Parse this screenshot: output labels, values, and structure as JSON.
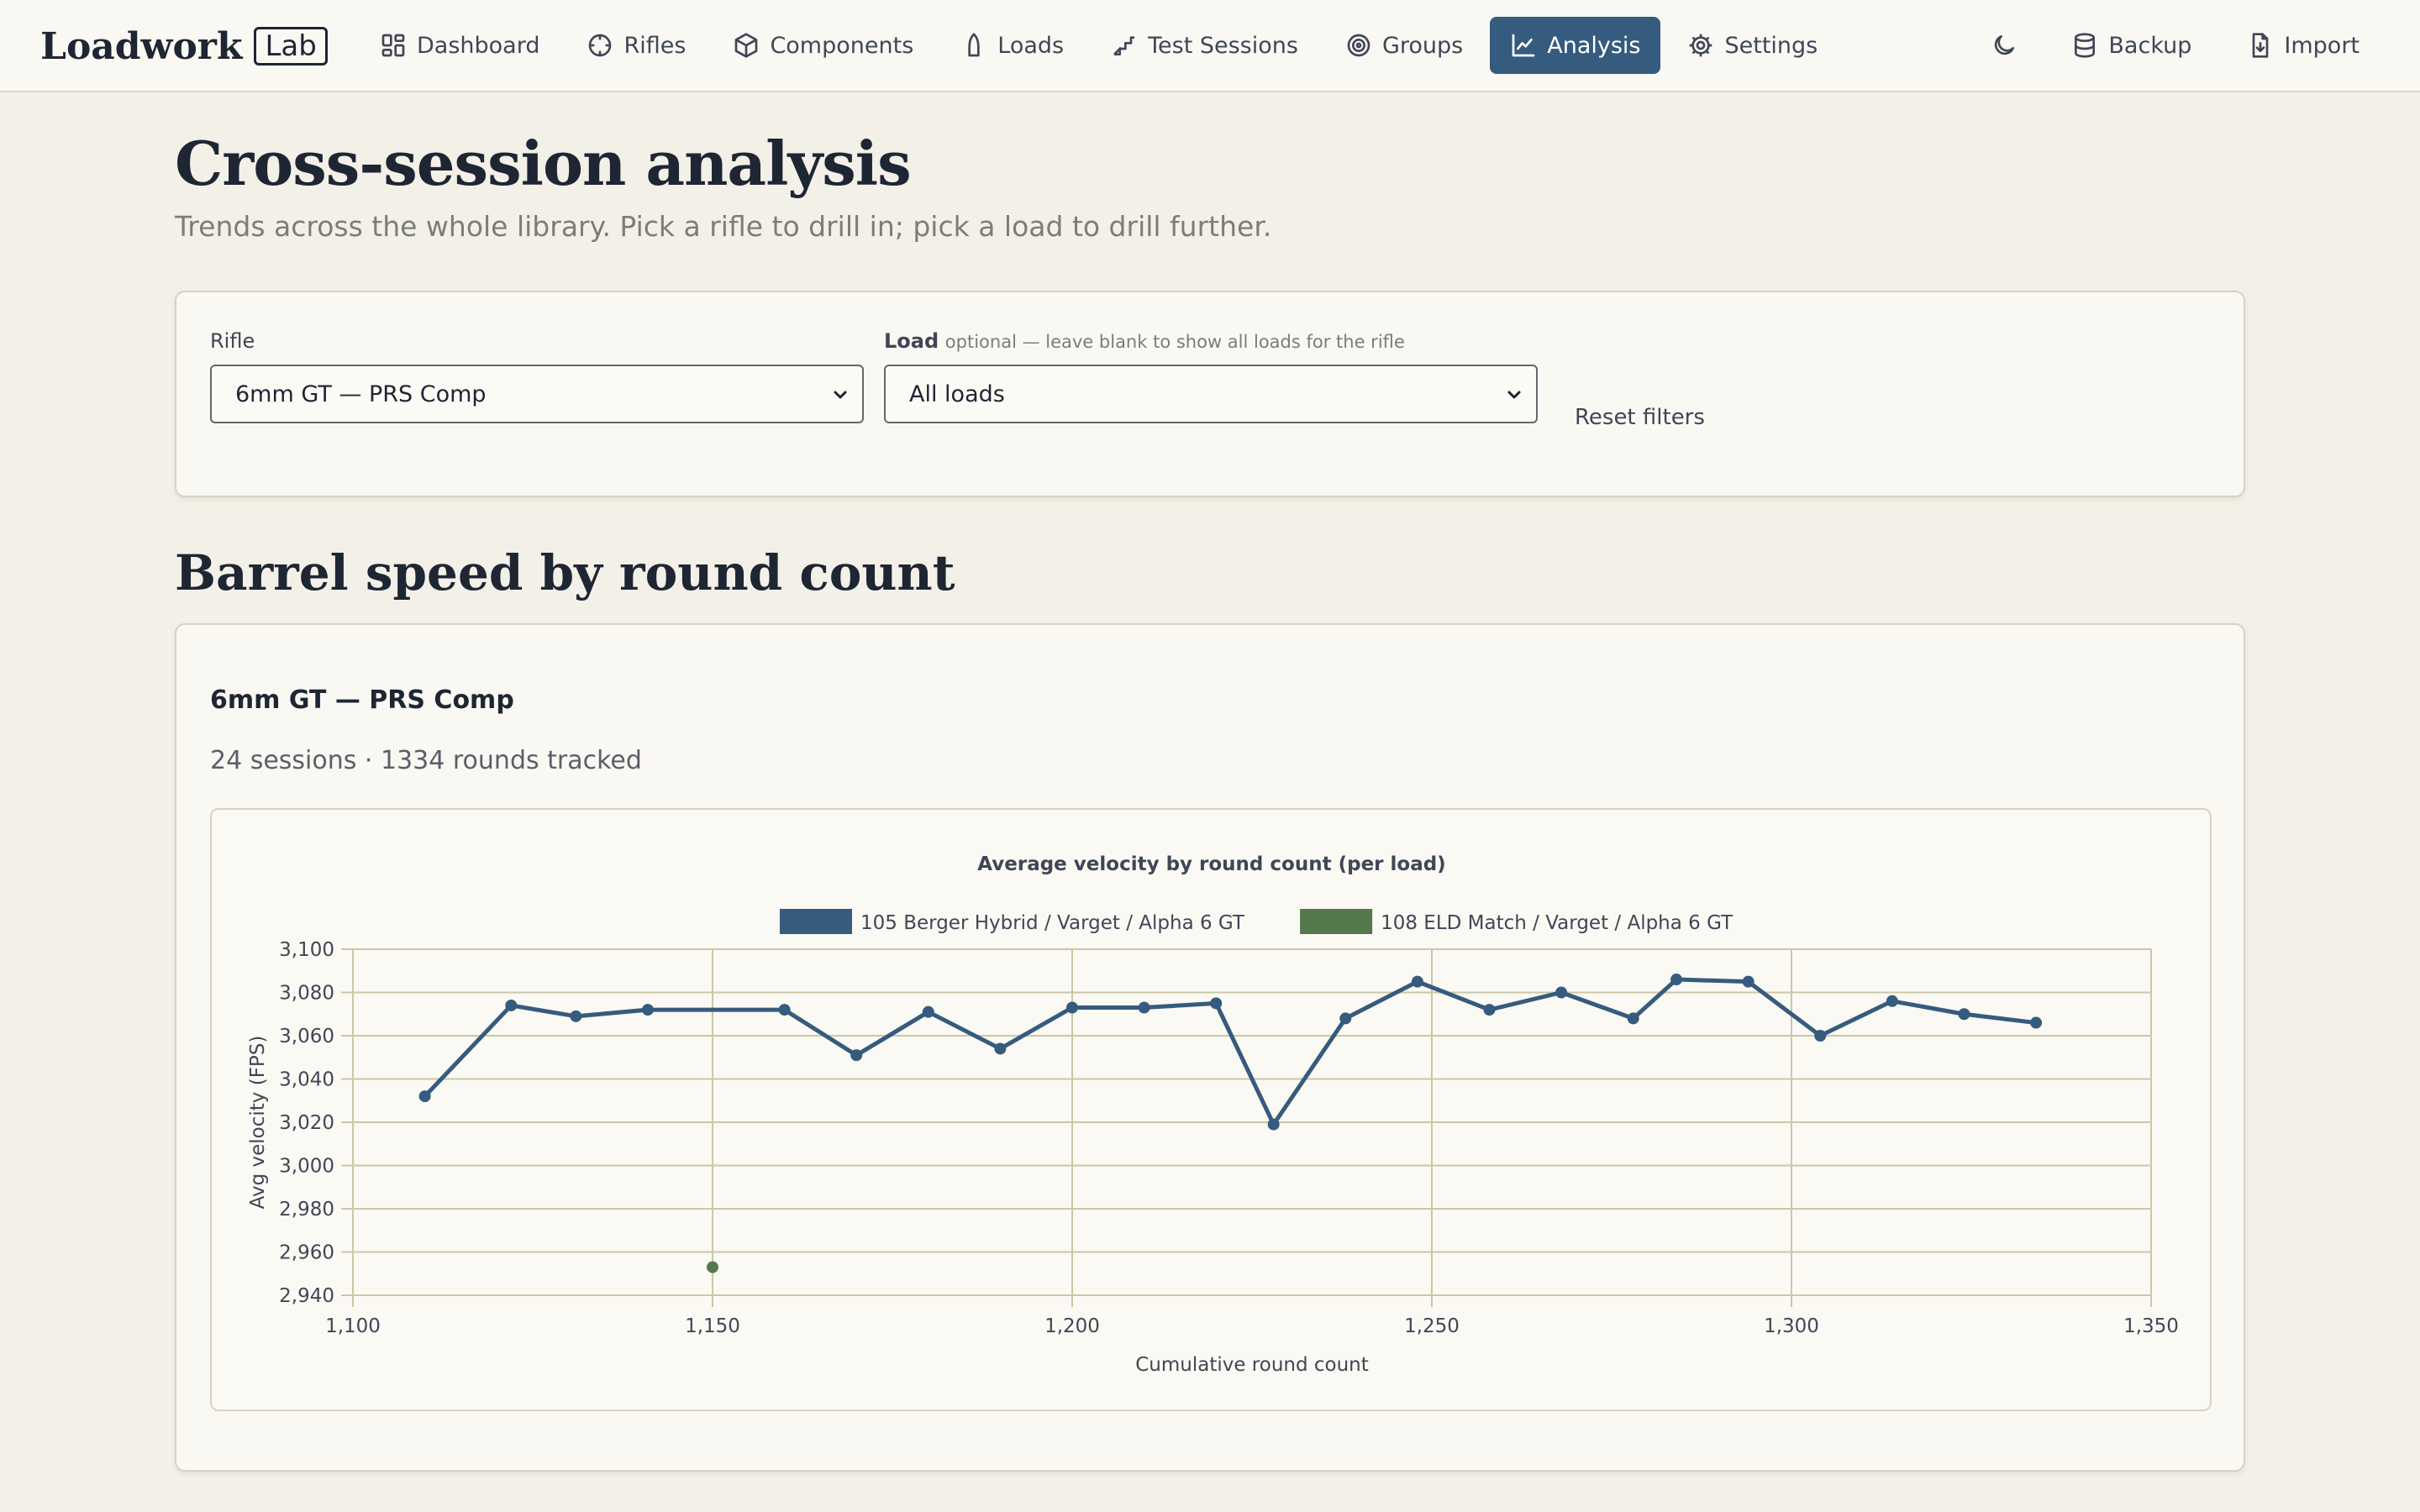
{
  "app": {
    "name": "Loadwork",
    "badge": "Lab"
  },
  "nav": {
    "items": [
      {
        "label": "Dashboard",
        "icon": "dashboard-icon"
      },
      {
        "label": "Rifles",
        "icon": "crosshair-icon"
      },
      {
        "label": "Components",
        "icon": "box-icon"
      },
      {
        "label": "Loads",
        "icon": "bullet-icon"
      },
      {
        "label": "Test Sessions",
        "icon": "stairs-icon"
      },
      {
        "label": "Groups",
        "icon": "target-icon"
      },
      {
        "label": "Analysis",
        "icon": "line-chart-icon",
        "active": true
      },
      {
        "label": "Settings",
        "icon": "gear-icon"
      }
    ],
    "backup_label": "Backup",
    "import_label": "Import"
  },
  "page": {
    "title": "Cross-session analysis",
    "subtitle": "Trends across the whole library. Pick a rifle to drill in; pick a load to drill further."
  },
  "filters": {
    "rifle_label": "Rifle",
    "rifle_value": "6mm GT — PRS Comp",
    "load_label": "Load",
    "load_hint": "optional — leave blank to show all loads for the rifle",
    "load_value": "All loads",
    "reset_label": "Reset filters"
  },
  "section": {
    "title": "Barrel speed by round count",
    "rifle_name": "6mm GT — PRS Comp",
    "stats": "24 sessions · 1334 rounds tracked"
  },
  "colors": {
    "accent": "#355b7e",
    "series1": "#355b7e",
    "series2": "#55784c",
    "background": "#f3f0e8"
  },
  "chart_data": {
    "type": "line",
    "title": "Average velocity by round count (per load)",
    "xlabel": "Cumulative round count",
    "ylabel": "Avg velocity (FPS)",
    "xlim": [
      1100,
      1350
    ],
    "ylim": [
      2940,
      3100
    ],
    "xticks": [
      "1,100",
      "1,150",
      "1,200",
      "1,250",
      "1,300",
      "1,350"
    ],
    "yticks": [
      "3,100",
      "3,080",
      "3,060",
      "3,040",
      "3,020",
      "3,000",
      "2,980",
      "2,960",
      "2,940"
    ],
    "grid": true,
    "legend": "top-center",
    "series": [
      {
        "name": "105 Berger Hybrid / Varget / Alpha 6 GT",
        "color": "#355b7e",
        "points": [
          [
            1110,
            3032
          ],
          [
            1122,
            3074
          ],
          [
            1131,
            3069
          ],
          [
            1141,
            3072
          ],
          [
            1160,
            3072
          ],
          [
            1170,
            3051
          ],
          [
            1180,
            3071
          ],
          [
            1190,
            3054
          ],
          [
            1200,
            3073
          ],
          [
            1210,
            3073
          ],
          [
            1220,
            3075
          ],
          [
            1228,
            3019
          ],
          [
            1238,
            3068
          ],
          [
            1248,
            3085
          ],
          [
            1258,
            3072
          ],
          [
            1268,
            3080
          ],
          [
            1278,
            3068
          ],
          [
            1284,
            3086
          ],
          [
            1294,
            3085
          ],
          [
            1304,
            3060
          ],
          [
            1314,
            3076
          ],
          [
            1324,
            3070
          ],
          [
            1334,
            3066
          ]
        ]
      },
      {
        "name": "108 ELD Match / Varget / Alpha 6 GT",
        "color": "#55784c",
        "points": [
          [
            1150,
            2953
          ]
        ]
      }
    ]
  }
}
